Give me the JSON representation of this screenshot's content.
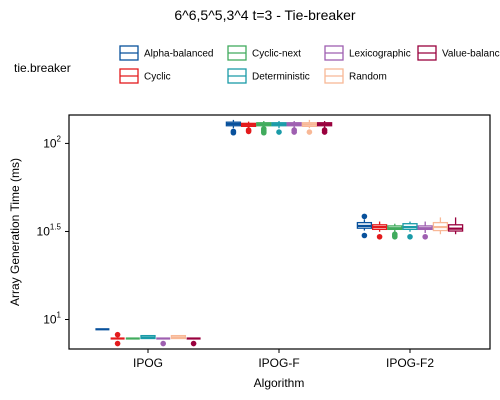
{
  "chart_data": {
    "type": "boxplot",
    "title": "6^6,5^5,3^4 t=3 - Tie-breaker",
    "xlabel": "Algorithm",
    "ylabel": "Array Generation Time (ms)",
    "y_scale": "log10",
    "y_ticks": [
      {
        "base": "10",
        "exp": "1",
        "value": 10
      },
      {
        "base": "10",
        "exp": "1.5",
        "value": 31.62
      },
      {
        "base": "10",
        "exp": "2",
        "value": 100
      }
    ],
    "ylim": [
      6.8,
      145
    ],
    "categories": [
      "IPOG",
      "IPOG-F",
      "IPOG-F2"
    ],
    "legend": {
      "title": "tie.breaker",
      "position": "top",
      "entries": [
        "Alpha-balanced",
        "Cyclic",
        "Cyclic-next",
        "Deterministic",
        "Lexicographic",
        "Random",
        "Value-balanced"
      ]
    },
    "series": [
      {
        "name": "Alpha-balanced",
        "color": "#08519c",
        "boxes": [
          {
            "min": 8.8,
            "q1": 8.8,
            "median": 8.8,
            "q3": 8.8,
            "max": 8.8,
            "outliers": []
          },
          {
            "min": 122,
            "q1": 126,
            "median": 129,
            "q3": 132,
            "max": 136,
            "outliers": [
              115,
              117
            ]
          },
          {
            "min": 32,
            "q1": 33,
            "median": 34,
            "q3": 35.5,
            "max": 37,
            "outliers": [
              30,
              38.5
            ]
          }
        ]
      },
      {
        "name": "Cyclic",
        "color": "#e31a1c",
        "boxes": [
          {
            "min": 7.8,
            "q1": 7.8,
            "median": 7.8,
            "q3": 7.8,
            "max": 7.8,
            "outliers": [
              7.3,
              8.2
            ]
          },
          {
            "min": 123,
            "q1": 125,
            "median": 127.5,
            "q3": 130,
            "max": 133,
            "outliers": [
              117,
              119
            ]
          },
          {
            "min": 31.5,
            "q1": 32.5,
            "median": 33.5,
            "q3": 34.5,
            "max": 36,
            "outliers": [
              29.5
            ]
          }
        ]
      },
      {
        "name": "Cyclic-next",
        "color": "#41ab5d",
        "boxes": [
          {
            "min": 7.8,
            "q1": 7.8,
            "median": 7.8,
            "q3": 7.8,
            "max": 7.8,
            "outliers": []
          },
          {
            "min": 124,
            "q1": 126,
            "median": 128.5,
            "q3": 131,
            "max": 134,
            "outliers": [
              115,
              117,
              119,
              121
            ]
          },
          {
            "min": 31.5,
            "q1": 32.5,
            "median": 33,
            "q3": 34,
            "max": 35,
            "outliers": [
              29.5,
              30,
              30.5
            ]
          }
        ]
      },
      {
        "name": "Deterministic",
        "color": "#1a9ba8",
        "boxes": [
          {
            "min": 7.8,
            "q1": 7.8,
            "median": 7.9,
            "q3": 8.1,
            "max": 8.1,
            "outliers": []
          },
          {
            "min": 122,
            "q1": 126,
            "median": 128.5,
            "q3": 131,
            "max": 134,
            "outliers": [
              116
            ]
          },
          {
            "min": 31.5,
            "q1": 32.5,
            "median": 33.5,
            "q3": 35,
            "max": 36,
            "outliers": [
              29.5
            ]
          }
        ]
      },
      {
        "name": "Lexicographic",
        "color": "#9e5fb0",
        "boxes": [
          {
            "min": 7.8,
            "q1": 7.8,
            "median": 7.8,
            "q3": 7.8,
            "max": 7.8,
            "outliers": [
              7.3
            ]
          },
          {
            "min": 123,
            "q1": 126,
            "median": 128.5,
            "q3": 131,
            "max": 134,
            "outliers": [
              116,
              119
            ]
          },
          {
            "min": 31,
            "q1": 32.5,
            "median": 33,
            "q3": 34,
            "max": 36,
            "outliers": [
              29.5
            ]
          }
        ]
      },
      {
        "name": "Random",
        "color": "#f8b896",
        "boxes": [
          {
            "min": 7.8,
            "q1": 7.8,
            "median": 7.9,
            "q3": 8.1,
            "max": 8.1,
            "outliers": []
          },
          {
            "min": 122,
            "q1": 125,
            "median": 128,
            "q3": 131,
            "max": 136,
            "outliers": [
              116
            ]
          },
          {
            "min": 30.5,
            "q1": 32,
            "median": 33.5,
            "q3": 35.5,
            "max": 38,
            "outliers": []
          }
        ]
      },
      {
        "name": "Value-balanced",
        "color": "#99003d",
        "boxes": [
          {
            "min": 7.8,
            "q1": 7.8,
            "median": 7.8,
            "q3": 7.8,
            "max": 7.8,
            "outliers": [
              7.3
            ]
          },
          {
            "min": 123,
            "q1": 126,
            "median": 128.5,
            "q3": 131,
            "max": 134,
            "outliers": [
              116,
              119
            ]
          },
          {
            "min": 30.5,
            "q1": 31.8,
            "median": 32.8,
            "q3": 34.5,
            "max": 38,
            "outliers": []
          }
        ]
      }
    ]
  }
}
